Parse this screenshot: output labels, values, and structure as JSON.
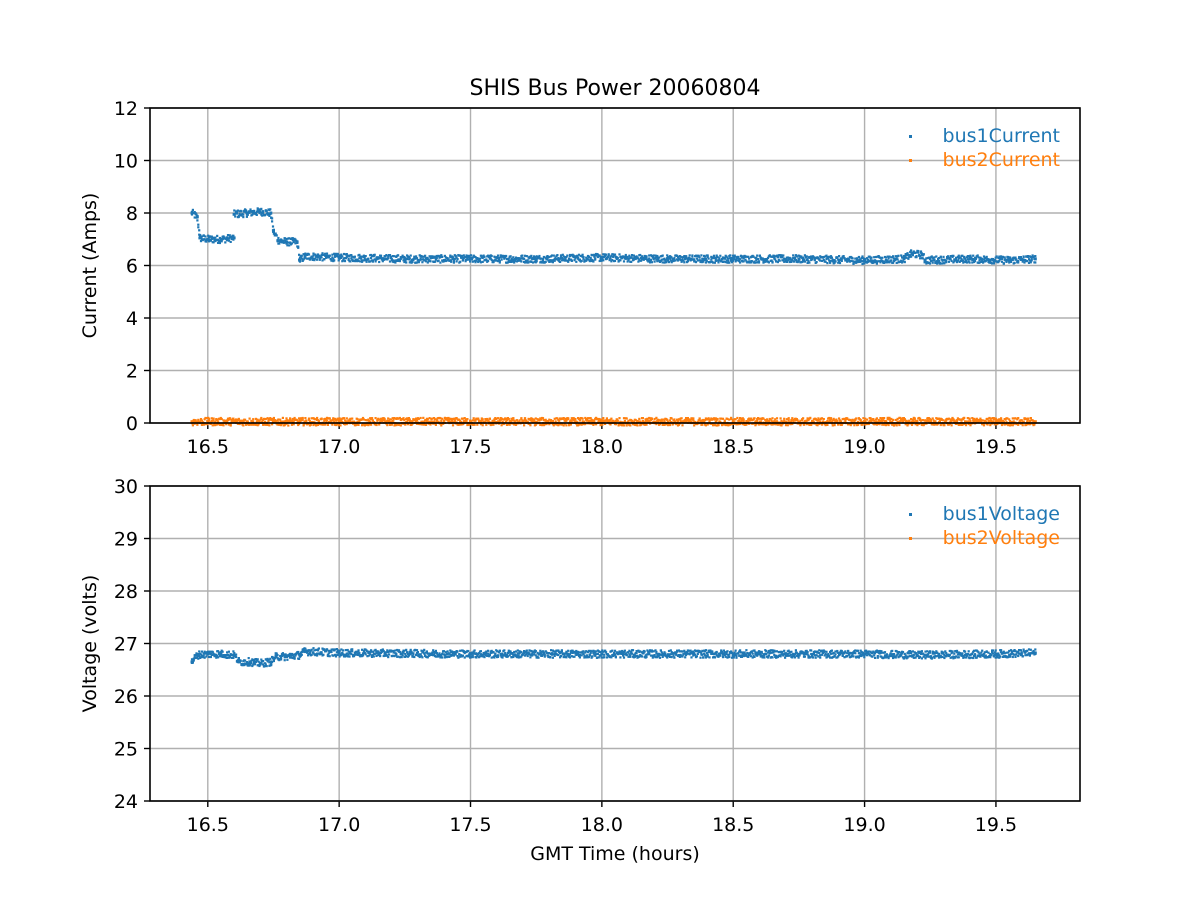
{
  "chart_data": {
    "type": "scatter",
    "title": "SHIS Bus Power 20060804",
    "xlabel": "GMT Time (hours)",
    "panels": [
      {
        "ylabel": "Current (Amps)",
        "xlim": [
          16.28,
          19.82
        ],
        "ylim": [
          0,
          12
        ],
        "xticks": [
          "16.5",
          "17.0",
          "17.5",
          "18.0",
          "18.5",
          "19.0",
          "19.5"
        ],
        "yticks": [
          "0",
          "2",
          "4",
          "6",
          "8",
          "10",
          "12"
        ],
        "grid": true,
        "legend_position": "top-right",
        "series": [
          {
            "name": "bus1Current",
            "color": "#1f77b4",
            "points": [
              [
                16.44,
                8.0
              ],
              [
                16.46,
                7.85
              ],
              [
                16.47,
                7.05
              ],
              [
                16.5,
                7.0
              ],
              [
                16.55,
                7.0
              ],
              [
                16.6,
                7.05
              ],
              [
                16.6,
                7.95
              ],
              [
                16.65,
                8.0
              ],
              [
                16.7,
                8.05
              ],
              [
                16.74,
                8.0
              ],
              [
                16.75,
                7.3
              ],
              [
                16.77,
                6.95
              ],
              [
                16.8,
                6.9
              ],
              [
                16.84,
                6.9
              ],
              [
                16.85,
                6.2
              ],
              [
                16.87,
                6.35
              ],
              [
                17.0,
                6.3
              ],
              [
                17.25,
                6.25
              ],
              [
                17.5,
                6.25
              ],
              [
                17.75,
                6.25
              ],
              [
                18.0,
                6.3
              ],
              [
                18.25,
                6.25
              ],
              [
                18.5,
                6.25
              ],
              [
                18.75,
                6.25
              ],
              [
                19.0,
                6.2
              ],
              [
                19.15,
                6.25
              ],
              [
                19.18,
                6.45
              ],
              [
                19.22,
                6.4
              ],
              [
                19.23,
                6.2
              ],
              [
                19.4,
                6.25
              ],
              [
                19.55,
                6.2
              ],
              [
                19.65,
                6.25
              ]
            ]
          },
          {
            "name": "bus2Current",
            "color": "#ff7f0e",
            "points": [
              [
                16.44,
                0.05
              ],
              [
                16.75,
                0.05
              ],
              [
                17.0,
                0.05
              ],
              [
                17.5,
                0.05
              ],
              [
                18.0,
                0.05
              ],
              [
                18.5,
                0.05
              ],
              [
                19.0,
                0.05
              ],
              [
                19.5,
                0.05
              ],
              [
                19.65,
                0.05
              ]
            ]
          }
        ]
      },
      {
        "ylabel": "Voltage (volts)",
        "xlim": [
          16.28,
          19.82
        ],
        "ylim": [
          24,
          30
        ],
        "xticks": [
          "16.5",
          "17.0",
          "17.5",
          "18.0",
          "18.5",
          "19.0",
          "19.5"
        ],
        "yticks": [
          "24",
          "25",
          "26",
          "27",
          "28",
          "29",
          "30"
        ],
        "grid": true,
        "legend_position": "top-right",
        "series": [
          {
            "name": "bus1Voltage",
            "color": "#1f77b4",
            "points": [
              [
                16.44,
                26.65
              ],
              [
                16.46,
                26.78
              ],
              [
                16.5,
                26.8
              ],
              [
                16.55,
                26.8
              ],
              [
                16.6,
                26.78
              ],
              [
                16.62,
                26.65
              ],
              [
                16.66,
                26.65
              ],
              [
                16.7,
                26.62
              ],
              [
                16.74,
                26.65
              ],
              [
                16.76,
                26.75
              ],
              [
                16.8,
                26.75
              ],
              [
                16.85,
                26.78
              ],
              [
                16.87,
                26.85
              ],
              [
                17.0,
                26.82
              ],
              [
                17.5,
                26.8
              ],
              [
                18.0,
                26.8
              ],
              [
                18.5,
                26.8
              ],
              [
                19.0,
                26.8
              ],
              [
                19.2,
                26.78
              ],
              [
                19.5,
                26.8
              ],
              [
                19.65,
                26.82
              ]
            ]
          },
          {
            "name": "bus2Voltage",
            "color": "#ff7f0e",
            "points": []
          }
        ]
      }
    ]
  }
}
